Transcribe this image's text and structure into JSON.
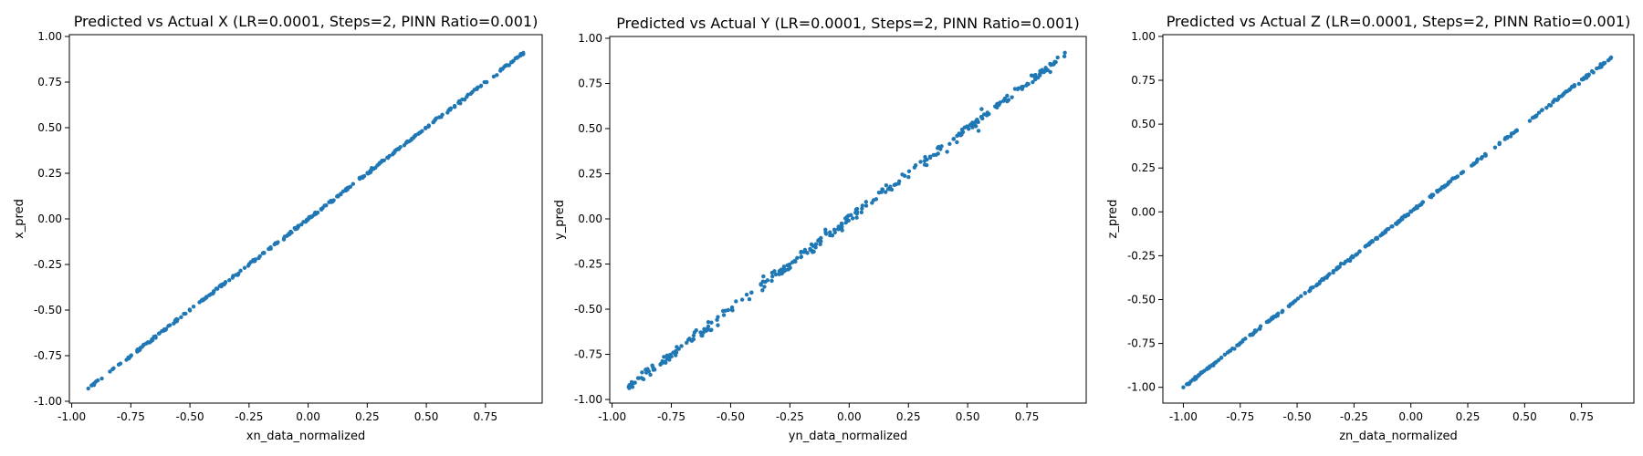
{
  "chart_data": [
    {
      "type": "scatter",
      "title": "Predicted vs Actual X (LR=0.0001, Steps=2, PINN Ratio=0.001)",
      "xlabel": "xn_data_normalized",
      "ylabel": "x_pred",
      "xlim": [
        -1.01,
        0.99
      ],
      "ylim": [
        -1.01,
        1.01
      ],
      "xticks": [
        "-1.00",
        "-0.75",
        "-0.50",
        "-0.25",
        "0.00",
        "0.25",
        "0.50",
        "0.75"
      ],
      "xtick_values": [
        -1.0,
        -0.75,
        -0.5,
        -0.25,
        0.0,
        0.25,
        0.5,
        0.75
      ],
      "yticks": [
        "-1.00",
        "-0.75",
        "-0.50",
        "-0.25",
        "0.00",
        "0.25",
        "0.50",
        "0.75",
        "1.00"
      ],
      "ytick_values": [
        -1.0,
        -0.75,
        -0.5,
        -0.25,
        0.0,
        0.25,
        0.5,
        0.75,
        1.0
      ],
      "x_range": [
        -0.93,
        0.91
      ],
      "y_range": [
        -0.93,
        0.91
      ],
      "slope": 1.0,
      "intercept": 0.0,
      "noise": 0.004,
      "n_points": 300,
      "point_color": "#1f77b4",
      "grid": false
    },
    {
      "type": "scatter",
      "title": "Predicted vs Actual Y (LR=0.0001, Steps=2, PINN Ratio=0.001)",
      "xlabel": "yn_data_normalized",
      "ylabel": "y_pred",
      "xlim": [
        -1.01,
        1.0
      ],
      "ylim": [
        -1.02,
        1.01
      ],
      "xticks": [
        "-1.00",
        "-0.75",
        "-0.50",
        "-0.25",
        "0.00",
        "0.25",
        "0.50",
        "0.75"
      ],
      "xtick_values": [
        -1.0,
        -0.75,
        -0.5,
        -0.25,
        0.0,
        0.25,
        0.5,
        0.75
      ],
      "yticks": [
        "-1.00",
        "-0.75",
        "-0.50",
        "-0.25",
        "0.00",
        "0.25",
        "0.50",
        "0.75",
        "1.00"
      ],
      "ytick_values": [
        -1.0,
        -0.75,
        -0.5,
        -0.25,
        0.0,
        0.25,
        0.5,
        0.75,
        1.0
      ],
      "x_range": [
        -0.93,
        0.91
      ],
      "y_range": [
        -0.93,
        0.92
      ],
      "slope": 1.0,
      "intercept": 0.0,
      "noise": 0.014,
      "n_points": 300,
      "point_color": "#1f77b4",
      "grid": false
    },
    {
      "type": "scatter",
      "title": "Predicted vs Actual Z (LR=0.0001, Steps=2, PINN Ratio=0.001)",
      "xlabel": "zn_data_normalized",
      "ylabel": "z_pred",
      "xlim": [
        -1.09,
        0.98
      ],
      "ylim": [
        -1.09,
        1.01
      ],
      "xticks": [
        "-1.00",
        "-0.75",
        "-0.50",
        "-0.25",
        "0.00",
        "0.25",
        "0.50",
        "0.75"
      ],
      "xtick_values": [
        -1.0,
        -0.75,
        -0.5,
        -0.25,
        0.0,
        0.25,
        0.5,
        0.75
      ],
      "yticks": [
        "-1.00",
        "-0.75",
        "-0.50",
        "-0.25",
        "0.00",
        "0.25",
        "0.50",
        "0.75",
        "1.00"
      ],
      "ytick_values": [
        -1.0,
        -0.75,
        -0.5,
        -0.25,
        0.0,
        0.25,
        0.5,
        0.75,
        1.0
      ],
      "x_range": [
        -1.0,
        0.88
      ],
      "y_range": [
        -1.0,
        0.88
      ],
      "slope": 1.0,
      "intercept": 0.0,
      "noise": 0.004,
      "n_points": 300,
      "point_color": "#1f77b4",
      "grid": false
    }
  ]
}
